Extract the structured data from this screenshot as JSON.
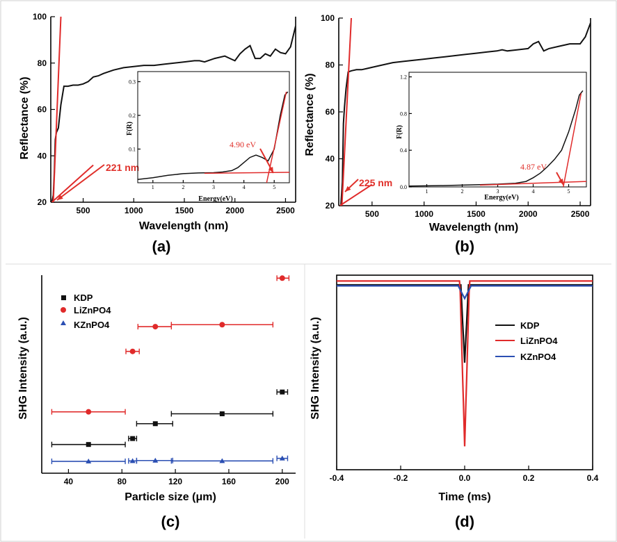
{
  "colors": {
    "black": "#111111",
    "red": "#e02a2a",
    "blue": "#2b4fb3",
    "annotation": "#e0302a"
  },
  "panel_labels": {
    "a": "(a)",
    "b": "(b)",
    "c": "(c)",
    "d": "(d)"
  },
  "annotations": {
    "a_main": "221 nm",
    "a_inset": "4.90 eV",
    "b_main": "225 nm",
    "b_inset": "4.87 eV"
  },
  "chart_data": [
    {
      "panel": "(a)",
      "type": "line",
      "xlabel": "Wavelength (nm)",
      "ylabel": "Reflectance (%)",
      "xlim": [
        180,
        2600
      ],
      "ylim": [
        20,
        100
      ],
      "xticks": [
        500,
        1000,
        1500,
        2000,
        2500
      ],
      "yticks": [
        20,
        40,
        60,
        80,
        100
      ],
      "series": [
        {
          "color": "black",
          "x": [
            190,
            205,
            215,
            225,
            235,
            255,
            280,
            310,
            350,
            400,
            450,
            500,
            550,
            600,
            650,
            700,
            800,
            900,
            1000,
            1100,
            1200,
            1300,
            1400,
            1500,
            1600,
            1650,
            1700,
            1800,
            1900,
            1950,
            2000,
            2050,
            2100,
            2150,
            2200,
            2250,
            2300,
            2350,
            2400,
            2450,
            2500,
            2550,
            2600
          ],
          "y": [
            20,
            23,
            33,
            47,
            50,
            52,
            62,
            70,
            70,
            70.5,
            70.5,
            71,
            72,
            74,
            74.5,
            75.5,
            77,
            78,
            78.5,
            79,
            79,
            79.5,
            80,
            80.5,
            81,
            81,
            80.5,
            82,
            83,
            82,
            81,
            84,
            86,
            87.5,
            82,
            82,
            84,
            83,
            86,
            84.5,
            84,
            87,
            96
          ]
        },
        {
          "color": "red",
          "x": [
            205,
            280
          ],
          "y": [
            20,
            100
          ]
        },
        {
          "color": "red",
          "x": [
            190,
            600
          ],
          "y": [
            20,
            36
          ]
        }
      ],
      "inset": {
        "xlabel": "Energy(eV)",
        "ylabel": "F(R)",
        "xlim": [
          0.5,
          5.5
        ],
        "ylim": [
          0,
          0.33
        ],
        "xticks": [
          1,
          2,
          3,
          4,
          5
        ],
        "yticks": [
          0.1,
          0.2,
          0.3
        ],
        "series": [
          {
            "color": "black",
            "x": [
              0.5,
              1.0,
              1.5,
              2.0,
              2.5,
              3.0,
              3.3,
              3.6,
              3.8,
              4.0,
              4.2,
              4.4,
              4.6,
              4.8,
              5.0,
              5.2,
              5.35,
              5.45
            ],
            "y": [
              0.01,
              0.015,
              0.022,
              0.027,
              0.029,
              0.03,
              0.032,
              0.036,
              0.045,
              0.06,
              0.075,
              0.082,
              0.075,
              0.065,
              0.1,
              0.2,
              0.26,
              0.27
            ]
          },
          {
            "color": "red",
            "x": [
              2.7,
              5.5
            ],
            "y": [
              0.028,
              0.031
            ]
          },
          {
            "color": "red",
            "x": [
              4.75,
              5.4
            ],
            "y": [
              0.0,
              0.27
            ]
          }
        ]
      }
    },
    {
      "panel": "(b)",
      "type": "line",
      "xlabel": "Wavelength (nm)",
      "ylabel": "Reflectance (%)",
      "xlim": [
        180,
        2600
      ],
      "ylim": [
        20,
        100
      ],
      "xticks": [
        500,
        1000,
        1500,
        2000,
        2500
      ],
      "yticks": [
        20,
        40,
        60,
        80,
        100
      ],
      "series": [
        {
          "color": "black",
          "x": [
            200,
            215,
            225,
            235,
            250,
            270,
            300,
            350,
            400,
            450,
            500,
            600,
            700,
            800,
            900,
            1000,
            1100,
            1200,
            1300,
            1400,
            1500,
            1600,
            1700,
            1750,
            1800,
            1900,
            2000,
            2050,
            2100,
            2150,
            2200,
            2300,
            2400,
            2500,
            2550,
            2600
          ],
          "y": [
            20,
            30,
            55,
            62,
            70,
            77,
            77.5,
            78,
            78,
            78.5,
            79,
            80,
            81,
            81.5,
            82,
            82.5,
            83,
            83.5,
            84,
            84.5,
            85,
            85.5,
            86,
            86.5,
            86,
            86.5,
            87,
            89,
            90,
            86,
            87,
            88,
            89,
            89,
            92,
            98
          ]
        },
        {
          "color": "red",
          "x": [
            210,
            300
          ],
          "y": [
            20,
            100
          ]
        },
        {
          "color": "red",
          "x": [
            190,
            500
          ],
          "y": [
            20,
            29
          ]
        }
      ],
      "inset": {
        "xlabel": "Energy(eV)",
        "ylabel": "F(R)",
        "xlim": [
          0.5,
          5.5
        ],
        "ylim": [
          0,
          1.25
        ],
        "xticks": [
          1,
          2,
          3,
          4,
          5
        ],
        "yticks": [
          0.0,
          0.4,
          0.8,
          1.2
        ],
        "series": [
          {
            "color": "black",
            "x": [
              0.5,
              1.0,
              1.5,
              2.0,
              2.5,
              3.0,
              3.5,
              3.8,
              4.0,
              4.2,
              4.4,
              4.6,
              4.8,
              5.0,
              5.2,
              5.3,
              5.4
            ],
            "y": [
              0.01,
              0.012,
              0.015,
              0.02,
              0.025,
              0.03,
              0.04,
              0.06,
              0.1,
              0.15,
              0.22,
              0.3,
              0.4,
              0.6,
              0.85,
              1.0,
              1.05
            ]
          },
          {
            "color": "red",
            "x": [
              2.5,
              5.5
            ],
            "y": [
              0.02,
              0.06
            ]
          },
          {
            "color": "red",
            "x": [
              4.85,
              5.35
            ],
            "y": [
              0.0,
              1.02
            ]
          }
        ]
      }
    },
    {
      "panel": "(c)",
      "type": "scatter",
      "xlabel": "Particle size (μm)",
      "ylabel": "SHG Intensity (a.u.)",
      "xlim": [
        20,
        210
      ],
      "ylim": [
        0,
        1
      ],
      "xticks": [
        40,
        80,
        120,
        160,
        200
      ],
      "legend": [
        "KDP",
        "LiZnPO4",
        "KZnPO4"
      ],
      "series": [
        {
          "name": "KDP",
          "color": "black",
          "marker": "square",
          "points": [
            {
              "x": 55,
              "xerr": [
                27.5,
                82.5
              ],
              "y": 0.145
            },
            {
              "x": 88,
              "xerr": [
                85,
                91
              ],
              "y": 0.175
            },
            {
              "x": 105,
              "xerr": [
                91,
                118
              ],
              "y": 0.25
            },
            {
              "x": 155,
              "xerr": [
                117,
                193
              ],
              "y": 0.3
            },
            {
              "x": 200,
              "xerr": [
                196,
                204
              ],
              "y": 0.41
            }
          ]
        },
        {
          "name": "LiZnPO4",
          "color": "red",
          "marker": "circle",
          "points": [
            {
              "x": 55,
              "xerr": [
                27.5,
                82.5
              ],
              "y": 0.31
            },
            {
              "x": 88,
              "xerr": [
                83,
                93
              ],
              "y": 0.615
            },
            {
              "x": 105,
              "xerr": [
                92,
                117
              ],
              "y": 0.74
            },
            {
              "x": 155,
              "xerr": [
                117,
                193
              ],
              "y": 0.75
            },
            {
              "x": 200,
              "xerr": [
                196,
                205
              ],
              "y": 0.985
            }
          ]
        },
        {
          "name": "KZnPO4",
          "color": "blue",
          "marker": "triangle",
          "points": [
            {
              "x": 55,
              "xerr": [
                27.5,
                82.5
              ],
              "y": 0.06
            },
            {
              "x": 88,
              "xerr": [
                85,
                91
              ],
              "y": 0.062
            },
            {
              "x": 105,
              "xerr": [
                91,
                118
              ],
              "y": 0.064
            },
            {
              "x": 155,
              "xerr": [
                117,
                193
              ],
              "y": 0.062
            },
            {
              "x": 200,
              "xerr": [
                196,
                204
              ],
              "y": 0.075
            }
          ]
        }
      ]
    },
    {
      "panel": "(d)",
      "type": "line",
      "xlabel": "Time (ms)",
      "ylabel": "SHG Intensity (a.u.)",
      "xlim": [
        -0.4,
        0.4
      ],
      "ylim": [
        0,
        1
      ],
      "xticks": [
        -0.4,
        -0.2,
        0.0,
        0.2,
        0.4
      ],
      "legend": [
        "KDP",
        "LiZnPO4",
        "KZnPO4"
      ],
      "series": [
        {
          "name": "KDP",
          "color": "black",
          "baseline": 0.95,
          "min": 0.55,
          "width": 0.012
        },
        {
          "name": "LiZnPO4",
          "color": "red",
          "baseline": 0.97,
          "min": 0.12,
          "width": 0.015
        },
        {
          "name": "KZnPO4",
          "color": "blue",
          "baseline": 0.945,
          "min": 0.88,
          "width": 0.02
        }
      ]
    }
  ]
}
